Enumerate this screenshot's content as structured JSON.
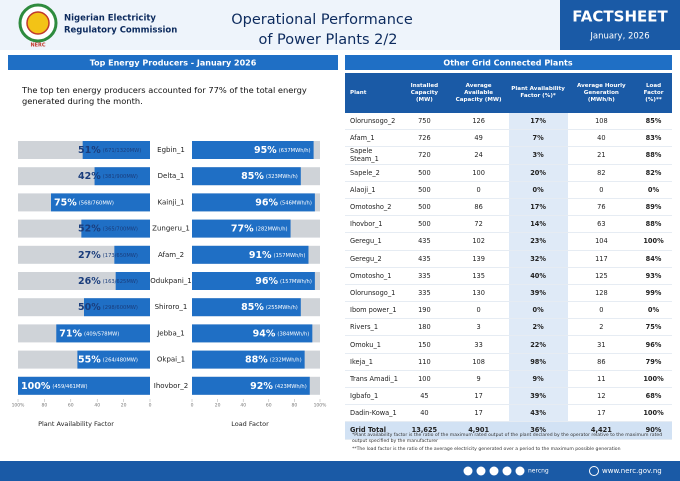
{
  "header": {
    "logo_text": "NERC",
    "org_name": [
      "Nigerian Electricity",
      "Regulatory Commission"
    ],
    "title": [
      "Operational Performance",
      "of Power Plants 2/2"
    ],
    "badge": "FACTSHEET",
    "date": "January, 2026"
  },
  "left_panel": {
    "title": "Top Energy Producers - January 2026",
    "intro": "The top ten energy producers accounted for 77% of the total energy generated during the month."
  },
  "chart_data": [
    {
      "type": "bar",
      "orientation": "horizontal",
      "title": "Plant Availability Factor",
      "color": "#1f6fc5",
      "categories": [
        "Egbin_1",
        "Delta_1",
        "Kainji_1",
        "Zungeru_1",
        "Afam_2",
        "Odukpani_1",
        "Shiroro_1",
        "Jebba_1",
        "Okpai_1",
        "Ihovbor_2"
      ],
      "values": [
        51,
        42,
        75,
        52,
        27,
        26,
        50,
        71,
        55,
        100
      ],
      "value_labels": [
        "51%",
        "42%",
        "75%",
        "52%",
        "27%",
        "26%",
        "50%",
        "71%",
        "55%",
        "100%"
      ],
      "details": [
        "(671/1320MW)",
        "(381/900MW)",
        "(568/760MW)",
        "(365/700MW)",
        "(173/650MW)",
        "(163/625MW)",
        "(298/600MW)",
        "(409/578MW)",
        "(264/480MW)",
        "(459/461MW)"
      ],
      "xlim": [
        100,
        0
      ],
      "xticks": [
        {
          "value": 100,
          "label": "100%"
        },
        80,
        60,
        40,
        20,
        0
      ]
    },
    {
      "type": "bar",
      "orientation": "horizontal",
      "title": "Load Factor",
      "color": "#1f6fc5",
      "values": [
        95,
        85,
        96,
        77,
        91,
        96,
        85,
        94,
        88,
        92
      ],
      "value_labels": [
        "95%",
        "85%",
        "96%",
        "77%",
        "91%",
        "96%",
        "85%",
        "94%",
        "88%",
        "92%"
      ],
      "details": [
        "(637MWh/h)",
        "(323MWh/h)",
        "(546MWh/h)",
        "(282MWh/h)",
        "(157MWh/h)",
        "(157MWh/h)",
        "(255MWh/h)",
        "(384MWh/h)",
        "(232MWh/h)",
        "(423MWh/h)"
      ],
      "xlim": [
        0,
        100
      ],
      "xticks": [
        0,
        20,
        40,
        60,
        80,
        {
          "value": 100,
          "label": "100%"
        }
      ]
    }
  ],
  "table": {
    "title": "Other Grid Connected Plants",
    "columns": [
      "Plant",
      "Installed Capacity (MW)",
      "Average Available Capacity (MW)",
      "Plant Availability Factor (%)*",
      "Average Hourly Generation (MWh/h)",
      "Load Factor (%)**"
    ],
    "rows": [
      [
        "Olorunsogo_2",
        "750",
        "126",
        "17%",
        "108",
        "85%"
      ],
      [
        "Afam_1",
        "726",
        "49",
        "7%",
        "40",
        "83%"
      ],
      [
        "Sapele Steam_1",
        "720",
        "24",
        "3%",
        "21",
        "88%"
      ],
      [
        "Sapele_2",
        "500",
        "100",
        "20%",
        "82",
        "82%"
      ],
      [
        "Alaoji_1",
        "500",
        "0",
        "0%",
        "0",
        "0%"
      ],
      [
        "Omotosho_2",
        "500",
        "86",
        "17%",
        "76",
        "89%"
      ],
      [
        "Ihovbor_1",
        "500",
        "72",
        "14%",
        "63",
        "88%"
      ],
      [
        "Geregu_1",
        "435",
        "102",
        "23%",
        "104",
        "100%"
      ],
      [
        "Geregu_2",
        "435",
        "139",
        "32%",
        "117",
        "84%"
      ],
      [
        "Omotosho_1",
        "335",
        "135",
        "40%",
        "125",
        "93%"
      ],
      [
        "Olorunsogo_1",
        "335",
        "130",
        "39%",
        "128",
        "99%"
      ],
      [
        "Ibom power_1",
        "190",
        "0",
        "0%",
        "0",
        "0%"
      ],
      [
        "Rivers_1",
        "180",
        "3",
        "2%",
        "2",
        "75%"
      ],
      [
        "Omoku_1",
        "150",
        "33",
        "22%",
        "31",
        "96%"
      ],
      [
        "Ikeja_1",
        "110",
        "108",
        "98%",
        "86",
        "79%"
      ],
      [
        "Trans Amadi_1",
        "100",
        "9",
        "9%",
        "11",
        "100%"
      ],
      [
        "Igbafo_1",
        "45",
        "17",
        "39%",
        "12",
        "68%"
      ],
      [
        "Dadin-Kowa_1",
        "40",
        "17",
        "43%",
        "17",
        "100%"
      ]
    ],
    "total": [
      "Grid Total",
      "13,625",
      "4,901",
      "36%",
      "4,421",
      "90%"
    ],
    "notes": [
      "*Plant availability factor is the ratio of the maximum rated output of the plant declared by the operator relative to the maximum rated output specified by the manufacturer",
      "**The load factor is the ratio of the average electricity generated over a period to the maximum possible generation"
    ]
  },
  "footer": {
    "social": "nercng",
    "website": "www.nerc.gov.ng"
  }
}
